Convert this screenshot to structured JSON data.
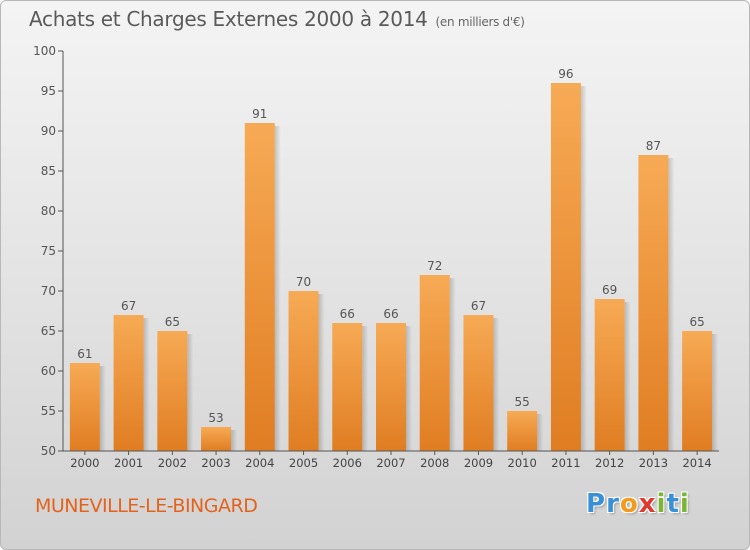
{
  "title": "Achats et Charges Externes 2000 à 2014",
  "title_unit": "(en milliers d'€)",
  "commune": "MUNEVILLE-LE-BINGARD",
  "logo": {
    "text": "Proxiti",
    "letters": [
      "P",
      "r",
      "o",
      "x",
      "i",
      "t",
      "i"
    ],
    "colors": [
      "#3a8fd6",
      "#3a8fd6",
      "#f29b1c",
      "#e03a2e",
      "#7ab634",
      "#3a8fd6",
      "#7ab634"
    ]
  },
  "colors": {
    "bar_light": "#f7aa55",
    "bar_dark": "#e07d22",
    "axis": "#555555",
    "grid": "#cfcfcf"
  },
  "chart_data": {
    "type": "bar",
    "title": "Achats et Charges Externes 2000 à 2014",
    "subtitle": "(en milliers d'€)",
    "categories": [
      "2000",
      "2001",
      "2002",
      "2003",
      "2004",
      "2005",
      "2006",
      "2007",
      "2008",
      "2009",
      "2010",
      "2011",
      "2012",
      "2013",
      "2014"
    ],
    "values": [
      61,
      67,
      65,
      53,
      91,
      70,
      66,
      66,
      72,
      67,
      55,
      96,
      69,
      87,
      65
    ],
    "ylim": [
      50,
      100
    ],
    "yticks": [
      50,
      55,
      60,
      65,
      70,
      75,
      80,
      85,
      90,
      95,
      100
    ],
    "xlabel": "",
    "ylabel": "",
    "grid": false,
    "data_labels": true
  }
}
